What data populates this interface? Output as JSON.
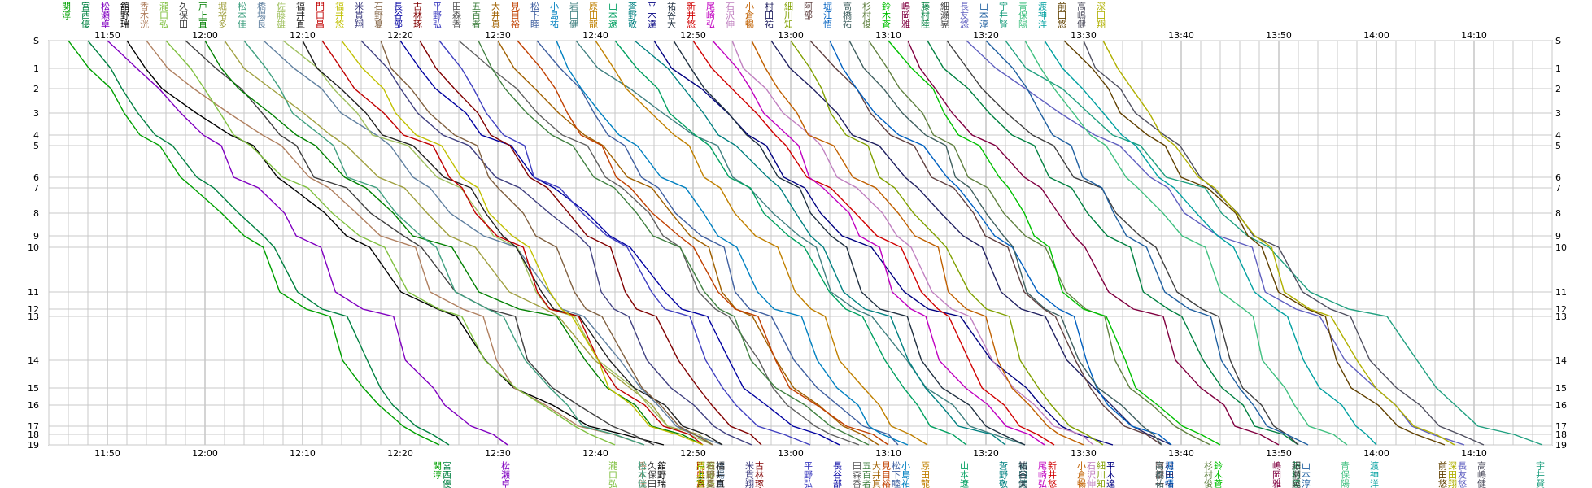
{
  "chart_data": {
    "type": "line",
    "title": "",
    "xlabel": "",
    "ylabel": "",
    "x_range": [
      "11:44",
      "14:18"
    ],
    "x_ticks": [
      "11:50",
      "12:00",
      "12:10",
      "12:20",
      "12:30",
      "12:40",
      "12:50",
      "13:00",
      "13:10",
      "13:20",
      "13:30",
      "13:40",
      "13:50",
      "14:00",
      "14:10"
    ],
    "y_range": [
      0,
      19
    ],
    "y_ticks": [
      "S",
      "1",
      "2",
      "3",
      "4",
      "5",
      "6",
      "7",
      "8",
      "9",
      "10",
      "11",
      "12",
      "13",
      "14",
      "15",
      "16",
      "17",
      "18",
      "19"
    ],
    "grid": true,
    "grid_minor_minutes": 2,
    "finish_label": "19",
    "series": [
      {
        "name": "関 淳",
        "color": "#00a000",
        "start": "11:46",
        "finish": "12:24"
      },
      {
        "name": "宮 西 優",
        "color": "#008040",
        "start": "11:48",
        "finish": "12:25"
      },
      {
        "name": "松 瀬 卓",
        "color": "#8000c0",
        "start": "11:50",
        "finish": "12:31"
      },
      {
        "name": "舘 野 瑞",
        "color": "#000000",
        "start": "11:52",
        "finish": "12:47"
      },
      {
        "name": "香 木 洸",
        "color": "#b08060",
        "start": "11:54",
        "finish": "12:45"
      },
      {
        "name": "瀧 口 弘",
        "color": "#80c040",
        "start": "11:56",
        "finish": "12:42"
      },
      {
        "name": "久 保 田",
        "color": "#404040",
        "start": "11:58",
        "finish": "12:46"
      },
      {
        "name": "戸 上 直",
        "color": "#008000",
        "start": "12:00",
        "finish": "12:51"
      },
      {
        "name": "堀 裕 多",
        "color": "#a0a040",
        "start": "12:02",
        "finish": "12:52"
      },
      {
        "name": "松 本 佳",
        "color": "#40a080",
        "start": "12:04",
        "finish": "12:45"
      },
      {
        "name": "橋 場 良",
        "color": "#6080a0",
        "start": "12:06",
        "finish": "12:53"
      },
      {
        "name": "佐 藤 雄",
        "color": "#a0c060",
        "start": "12:08",
        "finish": "12:52"
      },
      {
        "name": "福 井 直",
        "color": "#202020",
        "start": "12:10",
        "finish": "12:53"
      },
      {
        "name": "門 口 昌",
        "color": "#c00000",
        "start": "12:12",
        "finish": "12:51"
      },
      {
        "name": "福 井 悠",
        "color": "#c0c000",
        "start": "12:14",
        "finish": "12:51"
      },
      {
        "name": "米 貫 翔",
        "color": "#404080",
        "start": "12:16",
        "finish": "12:56"
      },
      {
        "name": "石 野 夏",
        "color": "#806040",
        "start": "12:18",
        "finish": "12:52"
      },
      {
        "name": "長 谷 部",
        "color": "#0000a0",
        "start": "12:20",
        "finish": "13:05"
      },
      {
        "name": "古 林 琢",
        "color": "#800000",
        "start": "12:22",
        "finish": "12:57"
      },
      {
        "name": "平 野 弘",
        "color": "#4040c0",
        "start": "12:24",
        "finish": "13:02"
      },
      {
        "name": "田 森 香",
        "color": "#606060",
        "start": "12:26",
        "finish": "13:07"
      },
      {
        "name": "五 百 者",
        "color": "#408040",
        "start": "12:28",
        "finish": "13:08"
      },
      {
        "name": "大 井 真",
        "color": "#a06000",
        "start": "12:30",
        "finish": "13:09"
      },
      {
        "name": "見 目 裕",
        "color": "#c04000",
        "start": "12:32",
        "finish": "13:10"
      },
      {
        "name": "松 下 睦",
        "color": "#4060a0",
        "start": "12:34",
        "finish": "13:11"
      },
      {
        "name": "小 島 祐",
        "color": "#0080c0",
        "start": "12:36",
        "finish": "13:12"
      },
      {
        "name": "岩 田 健",
        "color": "#408080",
        "start": "12:38",
        "finish": "13:24"
      },
      {
        "name": "原 田 龍",
        "color": "#c08000",
        "start": "12:40",
        "finish": "13:14"
      },
      {
        "name": "山 本 遼",
        "color": "#00a060",
        "start": "12:42",
        "finish": "13:18"
      },
      {
        "name": "蒼 野 敬",
        "color": "#008080",
        "start": "12:44",
        "finish": "13:22"
      },
      {
        "name": "平 木 達",
        "color": "#000080",
        "start": "12:46",
        "finish": "13:33"
      },
      {
        "name": "祐 谷 大",
        "color": "#203040",
        "start": "12:48",
        "finish": "13:24"
      },
      {
        "name": "新 井 悠",
        "color": "#d00000",
        "start": "12:50",
        "finish": "13:27"
      },
      {
        "name": "尾 崎 弘",
        "color": "#c000c0",
        "start": "12:52",
        "finish": "13:26"
      },
      {
        "name": "石 沢 伸",
        "color": "#c080c0",
        "start": "12:54",
        "finish": "13:31"
      },
      {
        "name": "小 倉 暢",
        "color": "#c06000",
        "start": "12:56",
        "finish": "13:30"
      },
      {
        "name": "村 田 祐",
        "color": "#202060",
        "start": "12:58",
        "finish": "13:39"
      },
      {
        "name": "細 川 知",
        "color": "#80a000",
        "start": "13:00",
        "finish": "13:32"
      },
      {
        "name": "阿 部 一",
        "color": "#604040",
        "start": "13:02",
        "finish": "13:38"
      },
      {
        "name": "堀 江 悟",
        "color": "#0060c0",
        "start": "13:04",
        "finish": "13:39"
      },
      {
        "name": "高 橋 祐",
        "color": "#406060",
        "start": "13:06",
        "finish": "13:38"
      },
      {
        "name": "杉 村 俊",
        "color": "#608040",
        "start": "13:08",
        "finish": "13:43"
      },
      {
        "name": "鈴 木 蒼",
        "color": "#00c000",
        "start": "13:10",
        "finish": "13:44"
      },
      {
        "name": "嶋 岡 雅",
        "color": "#800040",
        "start": "13:12",
        "finish": "13:50"
      },
      {
        "name": "藤 村 陸",
        "color": "#008040",
        "start": "13:14",
        "finish": "13:52"
      },
      {
        "name": "細 瀬 晃",
        "color": "#404040",
        "start": "13:16",
        "finish": "13:52"
      },
      {
        "name": "長 友 悠",
        "color": "#6060c0",
        "start": "13:18",
        "finish": "14:09"
      },
      {
        "name": "山 本 淳",
        "color": "#2060a0",
        "start": "13:20",
        "finish": "13:53"
      },
      {
        "name": "宇 井 賢",
        "color": "#20a080",
        "start": "13:22",
        "finish": "14:17"
      },
      {
        "name": "青 保 陽",
        "color": "#40c080",
        "start": "13:24",
        "finish": "13:57"
      },
      {
        "name": "渡 神 洋",
        "color": "#00a0a0",
        "start": "13:26",
        "finish": "14:00"
      },
      {
        "name": "前 田 悠",
        "color": "#604000",
        "start": "13:28",
        "finish": "14:07"
      },
      {
        "name": "高 嶋 健",
        "color": "#505060",
        "start": "13:30",
        "finish": "14:11"
      },
      {
        "name": "深 田 翔",
        "color": "#b0b000",
        "start": "13:32",
        "finish": "14:08"
      }
    ]
  }
}
